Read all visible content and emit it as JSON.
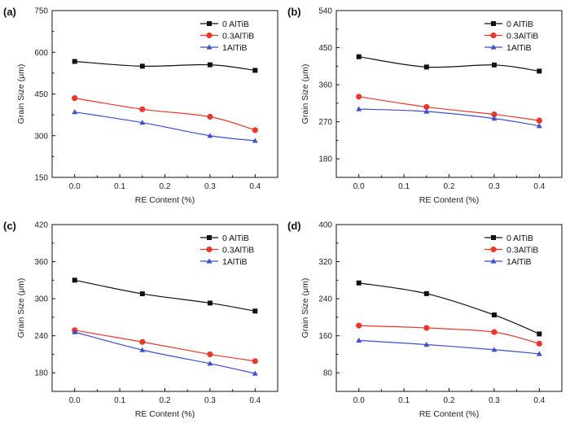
{
  "chart_data": [
    {
      "panel": "(a)",
      "type": "line",
      "x": [
        0.0,
        0.15,
        0.3,
        0.4
      ],
      "xlabel": "RE Content (%)",
      "ylabel": "Grain Size (μm)",
      "xlim": [
        -0.05,
        0.45
      ],
      "ylim": [
        150,
        750
      ],
      "xticks": [
        "0.0",
        "0.1",
        "0.2",
        "0.3",
        "0.4"
      ],
      "yticks": [
        "150",
        "300",
        "450",
        "600",
        "750"
      ],
      "legend_position": "top-right",
      "series": [
        {
          "name": "0 AlTiB",
          "color": "#111111",
          "marker": "square",
          "values": [
            567,
            550,
            555,
            535
          ]
        },
        {
          "name": "0.3AlTiB",
          "color": "#e8382b",
          "marker": "circle",
          "values": [
            435,
            395,
            368,
            320
          ]
        },
        {
          "name": "1AlTiB",
          "color": "#3b4fcf",
          "marker": "triangle",
          "values": [
            385,
            347,
            300,
            282
          ]
        }
      ]
    },
    {
      "panel": "(b)",
      "type": "line",
      "x": [
        0.0,
        0.15,
        0.3,
        0.4
      ],
      "xlabel": "RE Content (%)",
      "ylabel": "Grain Size (μm)",
      "xlim": [
        -0.05,
        0.45
      ],
      "ylim": [
        135,
        540
      ],
      "xticks": [
        "0.0",
        "0.1",
        "0.2",
        "0.3",
        "0.4"
      ],
      "yticks": [
        "180",
        "270",
        "360",
        "450",
        "540"
      ],
      "legend_position": "top-right",
      "series": [
        {
          "name": "0 AlTiB",
          "color": "#111111",
          "marker": "square",
          "values": [
            428,
            403,
            408,
            393
          ]
        },
        {
          "name": "0.3AlTiB",
          "color": "#e8382b",
          "marker": "circle",
          "values": [
            331,
            306,
            288,
            273
          ]
        },
        {
          "name": "1AlTiB",
          "color": "#3b4fcf",
          "marker": "triangle",
          "values": [
            301,
            295,
            278,
            260
          ]
        }
      ]
    },
    {
      "panel": "(c)",
      "type": "line",
      "x": [
        0.0,
        0.15,
        0.3,
        0.4
      ],
      "xlabel": "RE Content (%)",
      "ylabel": "Grain Size (μm)",
      "xlim": [
        -0.05,
        0.45
      ],
      "ylim": [
        150,
        420
      ],
      "xticks": [
        "0.0",
        "0.1",
        "0.2",
        "0.3",
        "0.4"
      ],
      "yticks": [
        "180",
        "240",
        "300",
        "360",
        "420"
      ],
      "legend_position": "top-right",
      "series": [
        {
          "name": "0 AlTiB",
          "color": "#111111",
          "marker": "square",
          "values": [
            330,
            308,
            293,
            280
          ]
        },
        {
          "name": "0.3AlTiB",
          "color": "#e8382b",
          "marker": "circle",
          "values": [
            249,
            230,
            210,
            199
          ]
        },
        {
          "name": "1AlTiB",
          "color": "#3b4fcf",
          "marker": "triangle",
          "values": [
            246,
            217,
            195,
            179
          ]
        }
      ]
    },
    {
      "panel": "(d)",
      "type": "line",
      "x": [
        0.0,
        0.15,
        0.3,
        0.4
      ],
      "xlabel": "RE Content (%)",
      "ylabel": "Grain Size (μm)",
      "xlim": [
        -0.05,
        0.45
      ],
      "ylim": [
        40,
        400
      ],
      "xticks": [
        "0.0",
        "0.1",
        "0.2",
        "0.3",
        "0.4"
      ],
      "yticks": [
        "80",
        "160",
        "240",
        "320",
        "400"
      ],
      "legend_position": "top-right",
      "series": [
        {
          "name": "0 AlTiB",
          "color": "#111111",
          "marker": "square",
          "values": [
            274,
            251,
            205,
            164
          ]
        },
        {
          "name": "0.3AlTiB",
          "color": "#e8382b",
          "marker": "circle",
          "values": [
            182,
            177,
            168,
            143
          ]
        },
        {
          "name": "1AlTiB",
          "color": "#3b4fcf",
          "marker": "triangle",
          "values": [
            150,
            141,
            130,
            121
          ]
        }
      ]
    }
  ]
}
